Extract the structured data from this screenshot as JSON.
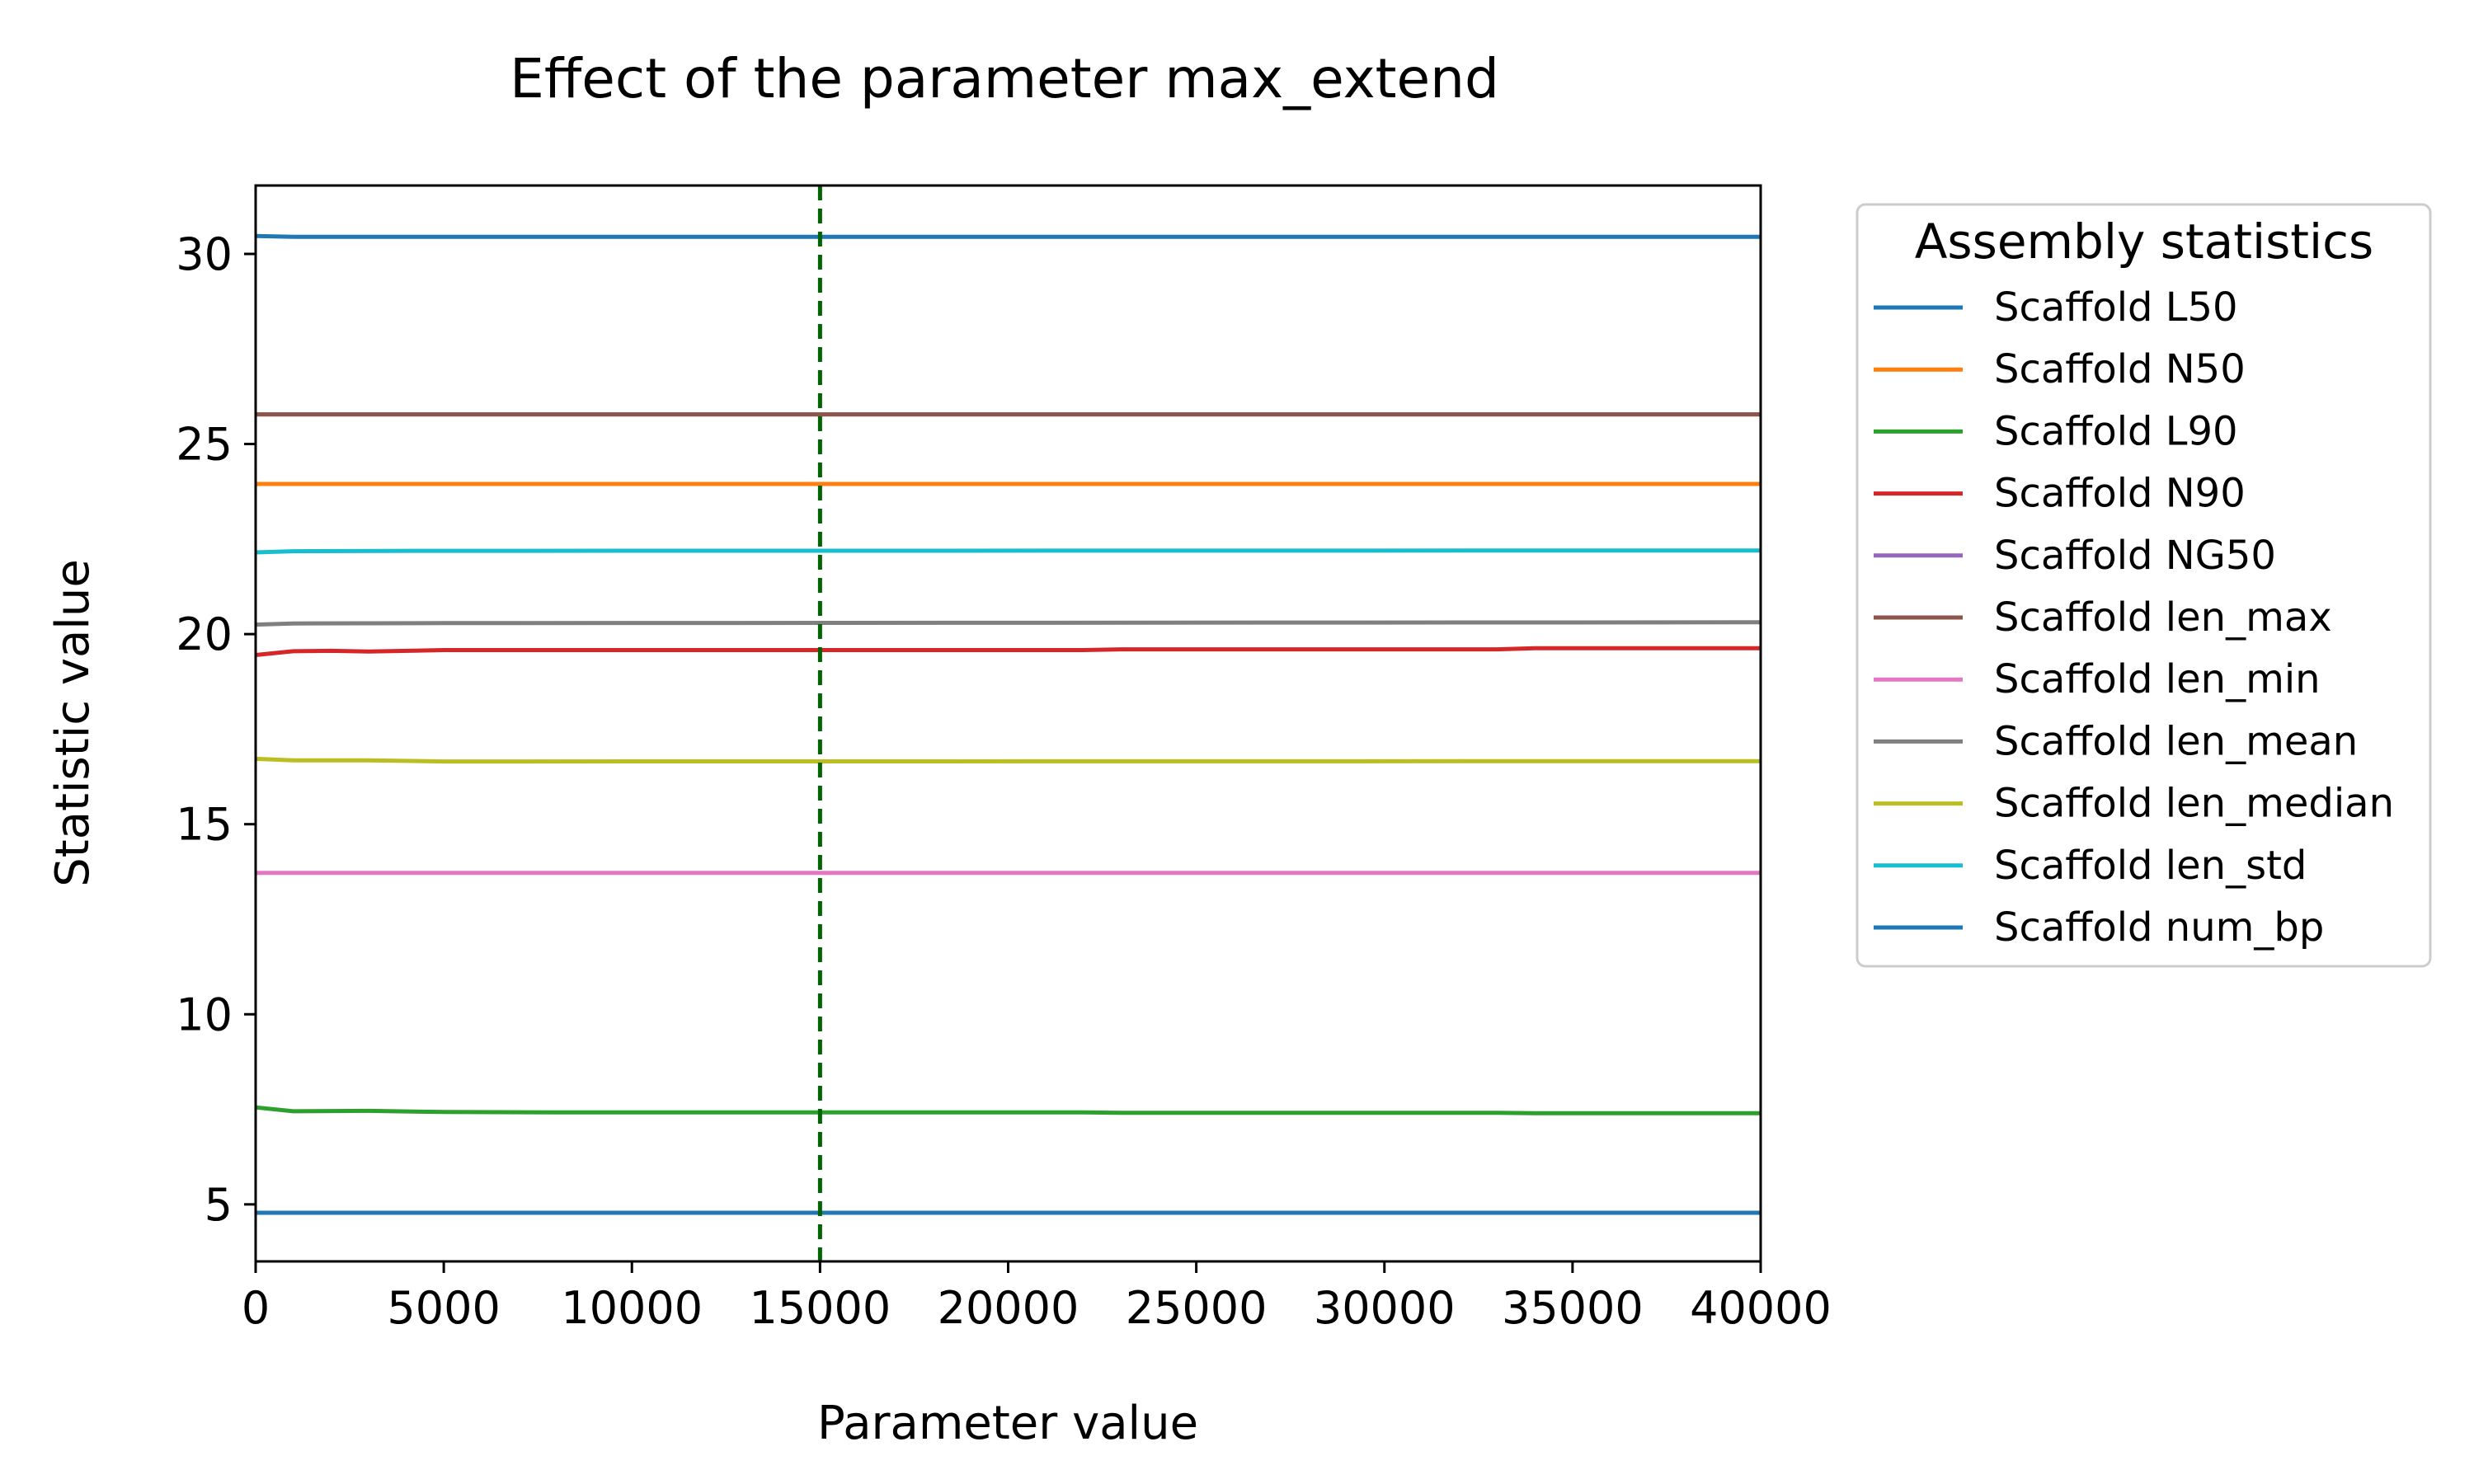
{
  "chart_data": {
    "type": "line",
    "title": "Effect of the parameter max_extend",
    "xlabel": "Parameter value",
    "ylabel": "Statistic value",
    "xlim": [
      0,
      40000
    ],
    "ylim": [
      3.5,
      31.8
    ],
    "xticks": [
      0,
      5000,
      10000,
      15000,
      20000,
      25000,
      30000,
      35000,
      40000
    ],
    "xtick_labels": [
      "0",
      "5000",
      "10000",
      "15000",
      "20000",
      "25000",
      "30000",
      "35000",
      "40000"
    ],
    "yticks": [
      5,
      10,
      15,
      20,
      25,
      30
    ],
    "ytick_labels": [
      "5",
      "10",
      "15",
      "20",
      "25",
      "30"
    ],
    "grid": false,
    "legend": {
      "title": "Assembly statistics",
      "placement": "outside-right-top"
    },
    "reference_line": {
      "x": 15000,
      "color": "#006400",
      "style": "dashed"
    },
    "series": [
      {
        "name": "Scaffold L50",
        "color": "#1f77b4",
        "points": [
          [
            0,
            30.47
          ],
          [
            1000,
            30.45
          ],
          [
            40000,
            30.45
          ]
        ]
      },
      {
        "name": "Scaffold N50",
        "color": "#ff7f0e",
        "points": [
          [
            0,
            23.95
          ],
          [
            40000,
            23.95
          ]
        ]
      },
      {
        "name": "Scaffold L90",
        "color": "#2ca02c",
        "points": [
          [
            0,
            7.55
          ],
          [
            1000,
            7.45
          ],
          [
            3000,
            7.46
          ],
          [
            5000,
            7.43
          ],
          [
            8000,
            7.42
          ],
          [
            22000,
            7.42
          ],
          [
            23000,
            7.41
          ],
          [
            33000,
            7.41
          ],
          [
            34000,
            7.4
          ],
          [
            40000,
            7.4
          ]
        ]
      },
      {
        "name": "Scaffold N90",
        "color": "#d62728",
        "points": [
          [
            0,
            19.45
          ],
          [
            1000,
            19.55
          ],
          [
            2000,
            19.56
          ],
          [
            3000,
            19.54
          ],
          [
            5000,
            19.58
          ],
          [
            22000,
            19.58
          ],
          [
            23000,
            19.6
          ],
          [
            33000,
            19.6
          ],
          [
            34000,
            19.63
          ],
          [
            40000,
            19.63
          ]
        ]
      },
      {
        "name": "Scaffold NG50",
        "color": "#9467bd",
        "points": [
          [
            0,
            25.78
          ],
          [
            40000,
            25.78
          ]
        ]
      },
      {
        "name": "Scaffold len_max",
        "color": "#8c564b",
        "points": [
          [
            0,
            25.78
          ],
          [
            40000,
            25.78
          ]
        ]
      },
      {
        "name": "Scaffold len_min",
        "color": "#e377c2",
        "points": [
          [
            0,
            13.72
          ],
          [
            40000,
            13.72
          ]
        ]
      },
      {
        "name": "Scaffold len_mean",
        "color": "#7f7f7f",
        "points": [
          [
            0,
            20.25
          ],
          [
            1000,
            20.28
          ],
          [
            5000,
            20.29
          ],
          [
            40000,
            20.31
          ]
        ]
      },
      {
        "name": "Scaffold len_median",
        "color": "#bcbd22",
        "points": [
          [
            0,
            16.72
          ],
          [
            1000,
            16.68
          ],
          [
            3000,
            16.68
          ],
          [
            5000,
            16.65
          ],
          [
            40000,
            16.66
          ]
        ]
      },
      {
        "name": "Scaffold len_std",
        "color": "#17becf",
        "points": [
          [
            0,
            22.15
          ],
          [
            1000,
            22.18
          ],
          [
            5000,
            22.19
          ],
          [
            40000,
            22.2
          ]
        ]
      },
      {
        "name": "Scaffold num_bp",
        "color": "#1f77b4",
        "points": [
          [
            0,
            4.78
          ],
          [
            40000,
            4.78
          ]
        ]
      }
    ]
  }
}
